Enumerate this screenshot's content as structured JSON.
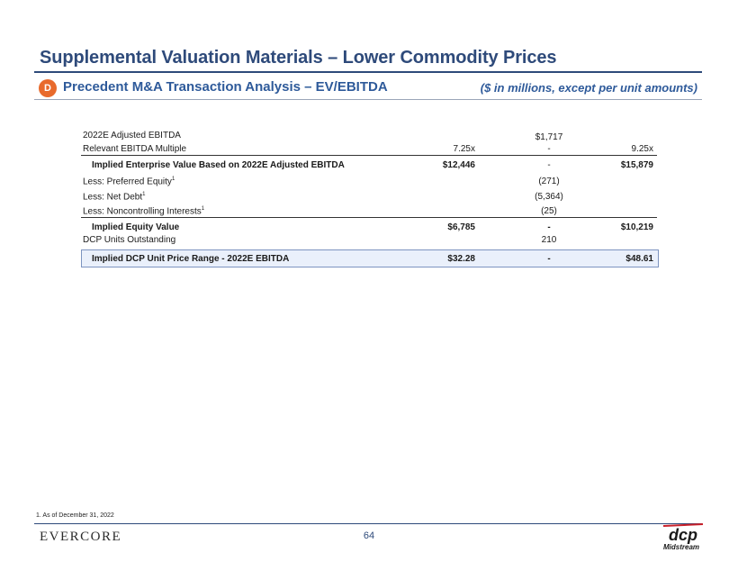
{
  "header": {
    "title": "Supplemental Valuation Materials – Lower Commodity Prices",
    "badge": "D",
    "subtitle": "Precedent M&A Transaction Analysis – EV/EBITDA",
    "units_note": "($ in millions, except per unit amounts)"
  },
  "table": {
    "rows": [
      {
        "label": "2022E Adjusted EBITDA",
        "low": "",
        "mid": "$1,717",
        "high": ""
      },
      {
        "label": "Relevant EBITDA Multiple",
        "low": "7.25x",
        "mid": "-",
        "high": "9.25x"
      },
      {
        "label": "Implied Enterprise Value Based on 2022E Adjusted EBITDA",
        "low": "$12,446",
        "mid": "-",
        "high": "$15,879"
      },
      {
        "label": "Less: Preferred Equity",
        "sup": "1",
        "low": "",
        "mid": "(271)",
        "high": ""
      },
      {
        "label": "Less: Net Debt",
        "sup": "1",
        "low": "",
        "mid": "(5,364)",
        "high": ""
      },
      {
        "label": "Less: Noncontrolling Interests",
        "sup": "1",
        "low": "",
        "mid": "(25)",
        "high": ""
      },
      {
        "label": "Implied Equity Value",
        "low": "$6,785",
        "mid": "-",
        "high": "$10,219"
      },
      {
        "label": "DCP Units Outstanding",
        "low": "",
        "mid": "210",
        "high": ""
      },
      {
        "label": "Implied DCP Unit Price Range - 2022E EBITDA",
        "low": "$32.28",
        "mid": "-",
        "high": "$48.61"
      }
    ]
  },
  "footer": {
    "footnote": "1.    As of December 31, 2022",
    "brand": "EVERCORE",
    "page_number": "64",
    "logo_text": "Midstream",
    "logo_mark": "dcp"
  },
  "colors": {
    "navy": "#2e4a7a",
    "blue": "#2e5a9a",
    "badge": "#e86a2c",
    "highlight": "#eaf0fb"
  }
}
